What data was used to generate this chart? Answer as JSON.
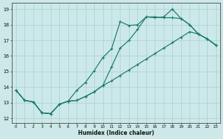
{
  "xlabel": "Humidex (Indice chaleur)",
  "bg_color": "#cce8e8",
  "grid_color": "#aad4d4",
  "line_color": "#1a7a6e",
  "xmin": -0.5,
  "xmax": 23.5,
  "ymin": 11.7,
  "ymax": 19.4,
  "xticks": [
    0,
    1,
    2,
    3,
    4,
    5,
    6,
    7,
    8,
    9,
    10,
    11,
    12,
    13,
    14,
    15,
    16,
    17,
    18,
    19,
    20,
    21,
    22,
    23
  ],
  "yticks": [
    12,
    13,
    14,
    15,
    16,
    17,
    18,
    19
  ],
  "line1_x": [
    0,
    1,
    2,
    3,
    4,
    5,
    6,
    7,
    8,
    9,
    10,
    11,
    12,
    13,
    14,
    15,
    16,
    17,
    18,
    19,
    20,
    21,
    22,
    23
  ],
  "line1_y": [
    13.8,
    13.15,
    13.05,
    12.35,
    12.3,
    12.9,
    13.1,
    13.8,
    14.3,
    15.05,
    15.9,
    16.45,
    18.2,
    17.95,
    18.0,
    18.5,
    18.45,
    18.5,
    19.0,
    18.4,
    18.0,
    17.4,
    17.1,
    16.7
  ],
  "line2_x": [
    0,
    1,
    2,
    3,
    4,
    5,
    6,
    7,
    8,
    9,
    10,
    11,
    12,
    13,
    14,
    15,
    16,
    17,
    18,
    19,
    20,
    21,
    22,
    23
  ],
  "line2_y": [
    13.8,
    13.15,
    13.05,
    12.35,
    12.3,
    12.9,
    13.1,
    13.15,
    13.4,
    13.7,
    14.1,
    15.3,
    16.5,
    17.0,
    17.7,
    18.5,
    18.5,
    18.45,
    18.45,
    18.4,
    18.0,
    17.4,
    17.1,
    16.7
  ],
  "line3_x": [
    0,
    1,
    2,
    3,
    4,
    5,
    6,
    7,
    8,
    9,
    10,
    11,
    12,
    13,
    14,
    15,
    16,
    17,
    18,
    19,
    20,
    21,
    22,
    23
  ],
  "line3_y": [
    13.8,
    13.15,
    13.05,
    12.35,
    12.3,
    12.9,
    13.1,
    13.15,
    13.4,
    13.7,
    14.1,
    14.4,
    14.75,
    15.1,
    15.45,
    15.8,
    16.15,
    16.5,
    16.85,
    17.2,
    17.55,
    17.4,
    17.1,
    16.7
  ]
}
